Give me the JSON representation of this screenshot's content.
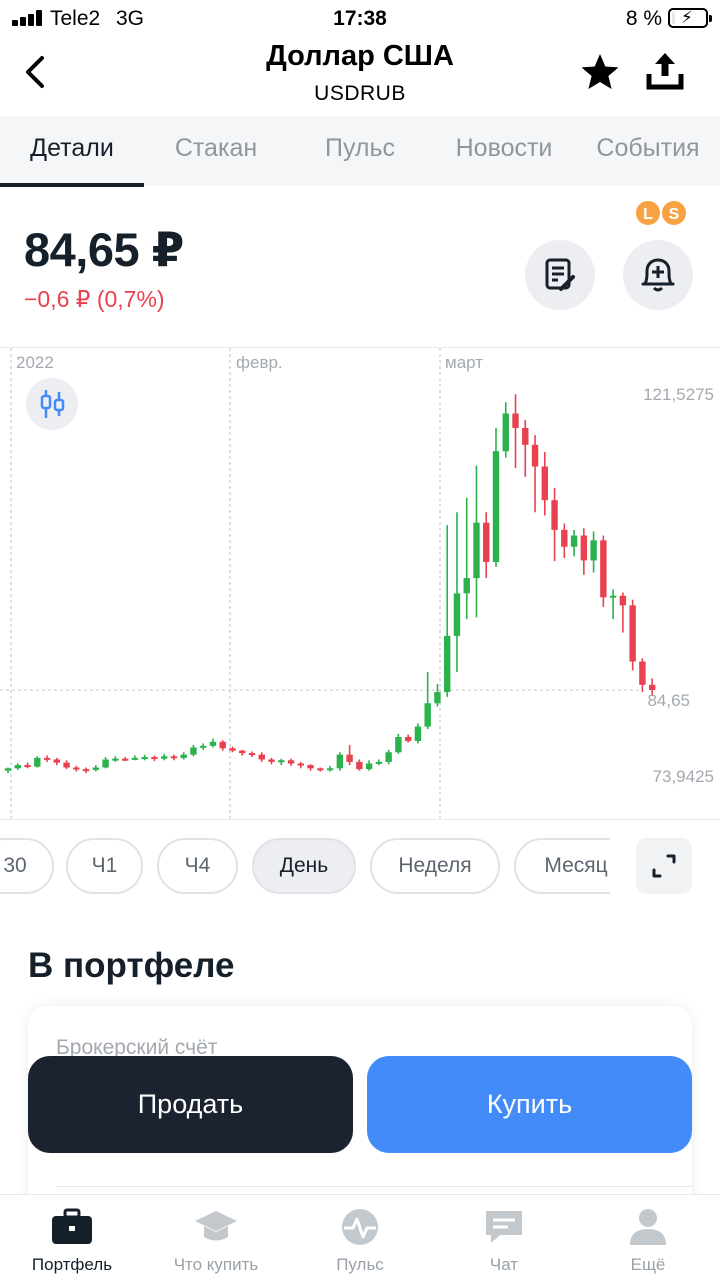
{
  "status_bar": {
    "carrier": "Tele2",
    "network": "3G",
    "time": "17:38",
    "battery_percent": "8 %",
    "battery_level": 0.08
  },
  "header": {
    "title": "Доллар США",
    "ticker": "USDRUB",
    "back_icon": "chevron-left-icon",
    "favorite_icon": "star-icon",
    "share_icon": "share-icon"
  },
  "tabs": [
    {
      "label": "Детали",
      "active": true
    },
    {
      "label": "Стакан",
      "active": false
    },
    {
      "label": "Пульс",
      "active": false
    },
    {
      "label": "Новости",
      "active": false
    },
    {
      "label": "События",
      "active": false
    }
  ],
  "quote": {
    "price": "84,65 ₽",
    "change": "−0,6 ₽ (0,7%)",
    "badges": [
      "L",
      "S"
    ],
    "note_icon": "note-edit-icon",
    "alert_icon": "bell-plus-icon"
  },
  "chart_data": {
    "type": "candlestick",
    "x_labels": [
      "2022",
      "февр.",
      "март"
    ],
    "y_labels": [
      "121,5275",
      "84,65",
      "73,9425"
    ],
    "y_range": [
      73.9425,
      121.5275
    ],
    "last_price": 84.65,
    "colors": {
      "up": "#2bb24c",
      "down": "#e8414f",
      "grid": "#c8ccd1"
    },
    "candles": [
      [
        74.6,
        74.9,
        74.3,
        75.0
      ],
      [
        74.9,
        75.3,
        74.7,
        75.5
      ],
      [
        75.3,
        75.1,
        74.9,
        75.6
      ],
      [
        75.1,
        76.2,
        75.0,
        76.4
      ],
      [
        76.2,
        76.0,
        75.7,
        76.5
      ],
      [
        76.0,
        75.6,
        75.3,
        76.2
      ],
      [
        75.6,
        75.0,
        74.8,
        75.9
      ],
      [
        75.0,
        74.8,
        74.5,
        75.2
      ],
      [
        74.8,
        74.7,
        74.3,
        75.0
      ],
      [
        74.7,
        75.0,
        74.5,
        75.3
      ],
      [
        75.0,
        76.0,
        74.9,
        76.3
      ],
      [
        76.0,
        76.1,
        75.7,
        76.4
      ],
      [
        76.1,
        76.0,
        75.8,
        76.3
      ],
      [
        76.0,
        76.2,
        75.9,
        76.5
      ],
      [
        76.2,
        76.3,
        75.9,
        76.6
      ],
      [
        76.3,
        76.1,
        75.8,
        76.5
      ],
      [
        76.1,
        76.4,
        75.9,
        76.7
      ],
      [
        76.4,
        76.2,
        75.9,
        76.6
      ],
      [
        76.2,
        76.6,
        76.0,
        76.9
      ],
      [
        76.6,
        77.5,
        76.4,
        77.8
      ],
      [
        77.5,
        77.7,
        77.2,
        78.0
      ],
      [
        77.7,
        78.2,
        77.5,
        78.6
      ],
      [
        78.2,
        77.4,
        77.1,
        78.4
      ],
      [
        77.4,
        77.1,
        76.9,
        77.6
      ],
      [
        77.1,
        76.8,
        76.5,
        77.2
      ],
      [
        76.8,
        76.6,
        76.3,
        77.0
      ],
      [
        76.6,
        76.0,
        75.7,
        76.9
      ],
      [
        76.0,
        75.7,
        75.4,
        76.2
      ],
      [
        75.7,
        75.9,
        75.3,
        76.1
      ],
      [
        75.9,
        75.5,
        75.2,
        76.1
      ],
      [
        75.5,
        75.3,
        74.9,
        75.7
      ],
      [
        75.3,
        74.9,
        74.6,
        75.4
      ],
      [
        74.9,
        74.8,
        74.5,
        75.0
      ],
      [
        74.8,
        74.9,
        74.5,
        75.2
      ],
      [
        74.9,
        76.6,
        74.6,
        76.9
      ],
      [
        76.6,
        75.7,
        75.3,
        77.8
      ],
      [
        75.7,
        74.8,
        74.6,
        76.0
      ],
      [
        74.8,
        75.5,
        74.6,
        75.9
      ],
      [
        75.5,
        75.7,
        75.3,
        76.0
      ],
      [
        75.7,
        76.9,
        75.4,
        77.2
      ],
      [
        76.9,
        78.8,
        76.7,
        79.2
      ],
      [
        78.8,
        78.3,
        78.1,
        79.1
      ],
      [
        78.3,
        80.1,
        78.0,
        80.5
      ],
      [
        80.1,
        83.0,
        79.8,
        86.9
      ],
      [
        83.0,
        84.4,
        82.6,
        85.4
      ],
      [
        84.4,
        91.4,
        83.8,
        105.2
      ],
      [
        91.4,
        96.7,
        86.9,
        106.8
      ],
      [
        96.7,
        98.6,
        93.5,
        108.6
      ],
      [
        98.6,
        105.5,
        93.7,
        112.6
      ],
      [
        105.5,
        100.6,
        98.6,
        106.8
      ],
      [
        100.6,
        114.4,
        100.0,
        117.3
      ],
      [
        114.4,
        119.1,
        113.6,
        120.5
      ],
      [
        119.1,
        117.3,
        112.3,
        121.5
      ],
      [
        117.3,
        115.2,
        111.2,
        118.3
      ],
      [
        115.2,
        112.5,
        106.8,
        116.4
      ],
      [
        112.5,
        108.3,
        106.4,
        114.3
      ],
      [
        108.3,
        104.6,
        100.7,
        109.8
      ],
      [
        104.6,
        102.5,
        101.1,
        105.4
      ],
      [
        102.5,
        103.9,
        101.3,
        104.6
      ],
      [
        103.9,
        100.8,
        99.0,
        104.8
      ],
      [
        100.8,
        103.3,
        99.3,
        104.4
      ],
      [
        103.3,
        96.2,
        95.0,
        103.9
      ],
      [
        96.2,
        96.4,
        93.5,
        97.2
      ],
      [
        96.4,
        95.2,
        91.8,
        96.8
      ],
      [
        95.2,
        88.2,
        87.1,
        95.9
      ],
      [
        88.2,
        85.3,
        84.4,
        88.6
      ],
      [
        85.3,
        84.65,
        83.9,
        86.1
      ]
    ]
  },
  "periods": [
    {
      "label": "30",
      "active": false
    },
    {
      "label": "Ч1",
      "active": false
    },
    {
      "label": "Ч4",
      "active": false
    },
    {
      "label": "День",
      "active": true
    },
    {
      "label": "Неделя",
      "active": false
    },
    {
      "label": "Месяц",
      "active": false
    }
  ],
  "portfolio": {
    "title": "В портфеле",
    "account_label": "Брокерский счёт"
  },
  "actions": {
    "sell": "Продать",
    "buy": "Купить"
  },
  "bottom_nav": [
    {
      "label": "Портфель",
      "icon": "briefcase-icon",
      "active": true
    },
    {
      "label": "Что купить",
      "icon": "graduation-cap-icon",
      "active": false
    },
    {
      "label": "Пульс",
      "icon": "pulse-icon",
      "active": false
    },
    {
      "label": "Чат",
      "icon": "chat-icon",
      "active": false
    },
    {
      "label": "Ещё",
      "icon": "profile-icon",
      "active": false
    }
  ]
}
